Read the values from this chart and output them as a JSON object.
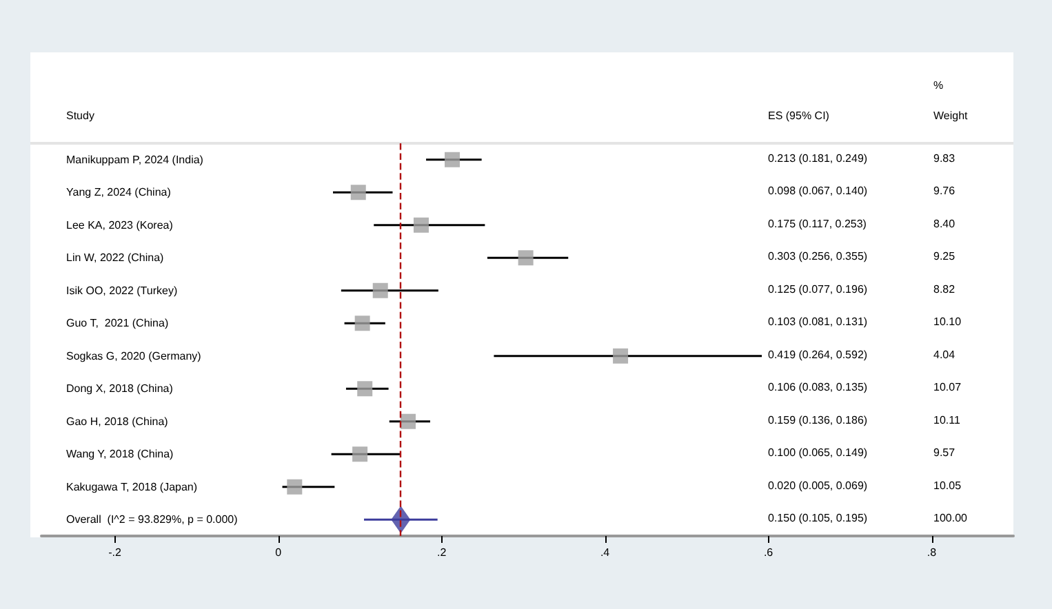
{
  "chart_data": {
    "type": "scatter",
    "orientation": "horizontal",
    "categories": [
      "Manikuppam P, 2024 (India)",
      "Yang Z, 2024 (China)",
      "Lee KA, 2023 (Korea)",
      "Lin W, 2022 (China)",
      "Isik OO, 2022 (Turkey)",
      "Guo T,  2021 (China)",
      "Sogkas G, 2020 (Germany)",
      "Dong X, 2018 (China)",
      "Gao H, 2018 (China)",
      "Wang Y, 2018 (China)",
      "Kakugawa T, 2018 (Japan)",
      "Overall  (I^2 = 93.829%, p = 0.000)"
    ],
    "series": [
      {
        "color": "#a0a0a0",
        "marker": "square",
        "values": [
          0.213,
          0.098,
          0.175,
          0.303,
          0.125,
          0.103,
          0.419,
          0.106,
          0.159,
          0.1,
          0.02,
          null
        ],
        "errors": [
          [
            0.181,
            0.249
          ],
          [
            0.067,
            0.14
          ],
          [
            0.117,
            0.253
          ],
          [
            0.256,
            0.355
          ],
          [
            0.077,
            0.196
          ],
          [
            0.081,
            0.131
          ],
          [
            0.264,
            0.592
          ],
          [
            0.083,
            0.135
          ],
          [
            0.136,
            0.186
          ],
          [
            0.065,
            0.149
          ],
          [
            0.005,
            0.069
          ],
          null
        ]
      },
      {
        "color": "#3c3c9c",
        "marker": "diamond",
        "values": [
          null,
          null,
          null,
          null,
          null,
          null,
          null,
          null,
          null,
          null,
          null,
          0.15
        ],
        "errors": [
          null,
          null,
          null,
          null,
          null,
          null,
          null,
          null,
          null,
          null,
          null,
          [
            0.105,
            0.195
          ]
        ]
      }
    ],
    "xlim": [
      -0.29,
      0.9
    ],
    "xticks": [
      {
        "value": -0.2,
        "label": "-.2"
      },
      0,
      {
        "value": 0.2,
        "label": ".2"
      },
      {
        "value": 0.4,
        "label": ".4"
      },
      {
        "value": 0.6,
        "label": ".6"
      },
      {
        "value": 0.8,
        "label": ".8"
      }
    ],
    "ref_lines": [
      {
        "axis": "x",
        "value": 0.15,
        "color": "#b01010",
        "line_style": "dashed"
      }
    ],
    "annotations": [
      "Study",
      "ES (95% CI)",
      "%",
      "Weight",
      "0.213 (0.181, 0.249)",
      "9.83",
      "0.098 (0.067, 0.140)",
      "9.76",
      "0.175 (0.117, 0.253)",
      "8.40",
      "0.303 (0.256, 0.355)",
      "9.25",
      "0.125 (0.077, 0.196)",
      "8.82",
      "0.103 (0.081, 0.131)",
      "10.10",
      "0.419 (0.264, 0.592)",
      "4.04",
      "0.106 (0.083, 0.135)",
      "10.07",
      "0.159 (0.136, 0.186)",
      "10.11",
      "0.100 (0.065, 0.149)",
      "9.57",
      "0.020 (0.005, 0.069)",
      "10.05",
      "0.150 (0.105, 0.195)",
      "100.00"
    ],
    "grid": false
  }
}
